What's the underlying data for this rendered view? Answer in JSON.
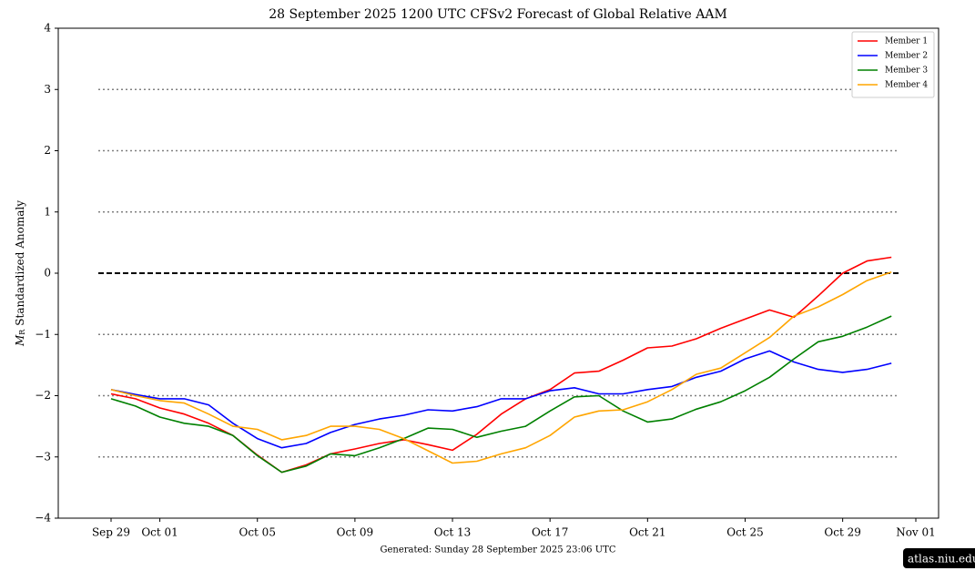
{
  "chart_data": {
    "type": "line",
    "title": "28  September  2025 1200 UTC   CFSv2 Forecast of Global Relative AAM",
    "ylabel_parts": [
      "M",
      "R",
      "Standardized Anomaly"
    ],
    "footer": "Generated: Sunday  28  September  2025  23:06 UTC",
    "badge": "atlas.niu.edu",
    "legend": "upper right",
    "ylim": [
      -4,
      4
    ],
    "yticks": [
      {
        "value": -4,
        "label": "−4"
      },
      {
        "value": -3,
        "label": "−3"
      },
      {
        "value": -2,
        "label": "−2"
      },
      {
        "value": -1,
        "label": "−1"
      },
      0,
      1,
      2,
      3,
      4
    ],
    "xticks": [
      "Sep 29",
      "Oct 01",
      "Oct 05",
      "Oct 09",
      "Oct 13",
      "Oct 17",
      "Oct 21",
      "Oct 25",
      "Oct 29",
      "Nov 01"
    ],
    "reference_lines": [
      {
        "value": -3,
        "style": "dotted",
        "color": "#808080"
      },
      {
        "value": -2,
        "style": "dotted",
        "color": "#808080"
      },
      {
        "value": -1,
        "style": "dotted",
        "color": "#808080"
      },
      {
        "value": 1,
        "style": "dotted",
        "color": "#808080"
      },
      {
        "value": 2,
        "style": "dotted",
        "color": "#808080"
      },
      {
        "value": 3,
        "style": "dotted",
        "color": "#808080"
      },
      {
        "value": 0,
        "style": "dashed",
        "color": "#000000"
      }
    ],
    "x": [
      "Sep 29",
      "Sep 30",
      "Oct 01",
      "Oct 02",
      "Oct 03",
      "Oct 04",
      "Oct 05",
      "Oct 06",
      "Oct 07",
      "Oct 08",
      "Oct 09",
      "Oct 10",
      "Oct 11",
      "Oct 12",
      "Oct 13",
      "Oct 14",
      "Oct 15",
      "Oct 16",
      "Oct 17",
      "Oct 18",
      "Oct 19",
      "Oct 20",
      "Oct 21",
      "Oct 22",
      "Oct 23",
      "Oct 24",
      "Oct 25",
      "Oct 26",
      "Oct 27",
      "Oct 28",
      "Oct 29",
      "Oct 30",
      "Oct 31"
    ],
    "series": [
      {
        "name": "Member 1",
        "color": "#ff0000",
        "values": [
          -1.97,
          -2.05,
          -2.2,
          -2.3,
          -2.45,
          -2.65,
          -2.97,
          -3.25,
          -3.13,
          -2.95,
          -2.87,
          -2.78,
          -2.72,
          -2.8,
          -2.89,
          -2.63,
          -2.3,
          -2.05,
          -1.9,
          -1.63,
          -1.6,
          -1.42,
          -1.22,
          -1.19,
          -1.07,
          -0.9,
          -0.75,
          -0.6,
          -0.72,
          -0.37,
          0,
          0.2,
          0.26
        ]
      },
      {
        "name": "Member 2",
        "color": "#0000ff",
        "values": [
          -1.9,
          -1.98,
          -2.05,
          -2.05,
          -2.15,
          -2.45,
          -2.7,
          -2.85,
          -2.78,
          -2.6,
          -2.47,
          -2.38,
          -2.32,
          -2.23,
          -2.25,
          -2.18,
          -2.05,
          -2.05,
          -1.92,
          -1.87,
          -1.97,
          -1.97,
          -1.9,
          -1.85,
          -1.7,
          -1.6,
          -1.4,
          -1.27,
          -1.45,
          -1.57,
          -1.62,
          -1.57,
          -1.47
        ]
      },
      {
        "name": "Member 3",
        "color": "#008000",
        "values": [
          -2.05,
          -2.17,
          -2.35,
          -2.45,
          -2.5,
          -2.65,
          -2.98,
          -3.25,
          -3.15,
          -2.95,
          -2.98,
          -2.85,
          -2.7,
          -2.53,
          -2.55,
          -2.68,
          -2.58,
          -2.5,
          -2.25,
          -2.02,
          -2.0,
          -2.25,
          -2.43,
          -2.38,
          -2.22,
          -2.1,
          -1.92,
          -1.7,
          -1.4,
          -1.12,
          -1.03,
          -0.88,
          -0.7
        ]
      },
      {
        "name": "Member 4",
        "color": "#ffa500",
        "values": [
          -1.9,
          -2.0,
          -2.08,
          -2.12,
          -2.3,
          -2.5,
          -2.55,
          -2.72,
          -2.65,
          -2.5,
          -2.5,
          -2.55,
          -2.7,
          -2.9,
          -3.1,
          -3.07,
          -2.95,
          -2.85,
          -2.65,
          -2.35,
          -2.25,
          -2.23,
          -2.1,
          -1.9,
          -1.65,
          -1.55,
          -1.3,
          -1.05,
          -0.7,
          -0.55,
          -0.35,
          -0.12,
          0.02
        ]
      }
    ]
  }
}
